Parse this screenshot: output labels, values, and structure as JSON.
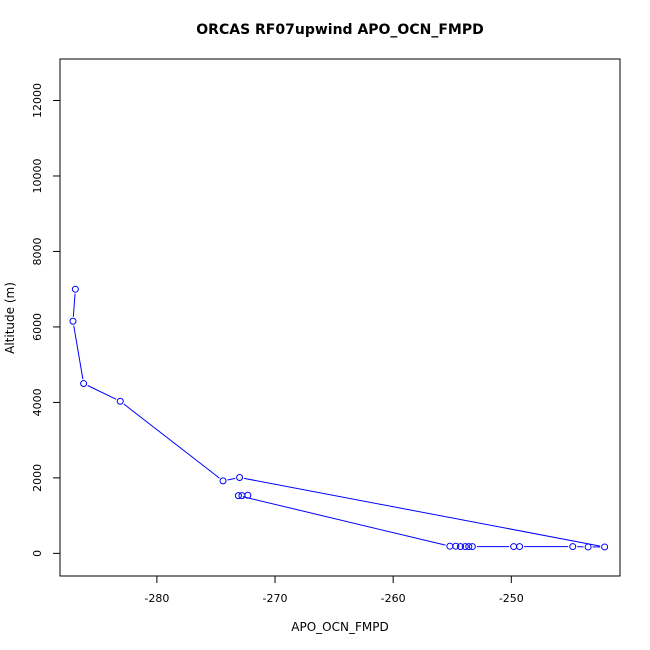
{
  "chart_data": {
    "type": "line",
    "title": "ORCAS RF07upwind APO_OCN_FMPD",
    "xlabel": "APO_OCN_FMPD",
    "ylabel": "Altitude (m)",
    "xlim": [
      -288.2,
      -240.8
    ],
    "ylim": [
      -600,
      13100
    ],
    "x_ticks": [
      -280,
      -270,
      -260,
      -250
    ],
    "y_ticks": [
      0,
      2000,
      4000,
      6000,
      8000,
      10000,
      12000
    ],
    "grid": false,
    "legend": "none",
    "marker": "open-circle",
    "series_color": "#0000ff",
    "series": [
      {
        "x": [
          -286.9,
          -287.1,
          -286.2,
          -283.1,
          -274.4,
          -273.0,
          -242.1,
          -243.5,
          -244.8,
          -249.3,
          -249.8,
          -253.3,
          -253.6,
          -253.9,
          -254.3,
          -254.7,
          -255.2,
          -273.1,
          -272.8,
          -272.3
        ],
        "y": [
          7000,
          6150,
          4500,
          4030,
          1920,
          2010,
          170,
          170,
          180,
          180,
          180,
          180,
          180,
          180,
          180,
          190,
          190,
          1530,
          1530,
          1540
        ]
      }
    ]
  }
}
